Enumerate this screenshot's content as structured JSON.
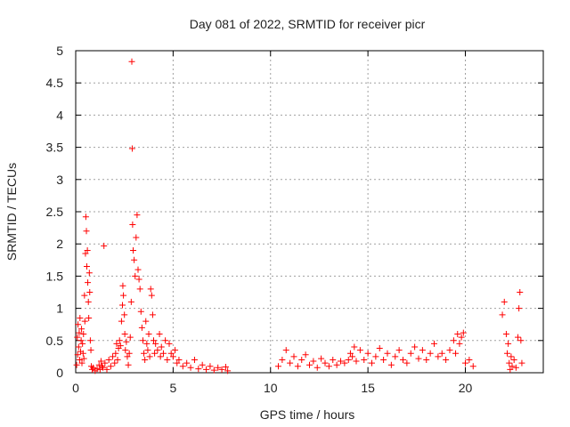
{
  "chart_data": {
    "type": "scatter",
    "title": "Day 081 of 2022, SRMTID for receiver picr",
    "xlabel": "GPS time / hours",
    "ylabel": "SRMTID / TECUs",
    "xlim": [
      0,
      24
    ],
    "ylim": [
      0,
      5
    ],
    "x_ticks": [
      "0",
      "5",
      "10",
      "15",
      "20"
    ],
    "y_ticks": [
      "0",
      "0.5",
      "1",
      "1.5",
      "2",
      "2.5",
      "3",
      "3.5",
      "4",
      "4.5",
      "5"
    ],
    "grid": true,
    "marker": "+",
    "color": "#ff0000",
    "series": [
      {
        "name": "SRMTID",
        "points": [
          [
            0.05,
            0.12
          ],
          [
            0.08,
            0.55
          ],
          [
            0.1,
            0.28
          ],
          [
            0.12,
            0.75
          ],
          [
            0.15,
            0.4
          ],
          [
            0.18,
            0.62
          ],
          [
            0.2,
            0.2
          ],
          [
            0.22,
            0.85
          ],
          [
            0.25,
            0.33
          ],
          [
            0.28,
            0.5
          ],
          [
            0.3,
            0.68
          ],
          [
            0.32,
            0.15
          ],
          [
            0.35,
            0.45
          ],
          [
            0.38,
            0.3
          ],
          [
            0.4,
            0.6
          ],
          [
            0.42,
            0.22
          ],
          [
            0.45,
            1.2
          ],
          [
            0.47,
            0.8
          ],
          [
            0.5,
            1.85
          ],
          [
            0.52,
            2.42
          ],
          [
            0.55,
            2.2
          ],
          [
            0.57,
            1.65
          ],
          [
            0.6,
            1.9
          ],
          [
            0.62,
            1.4
          ],
          [
            0.65,
            1.1
          ],
          [
            0.67,
            0.85
          ],
          [
            0.7,
            1.55
          ],
          [
            0.72,
            1.25
          ],
          [
            0.75,
            0.5
          ],
          [
            0.78,
            0.35
          ],
          [
            0.8,
            0.1
          ],
          [
            0.85,
            0.05
          ],
          [
            0.9,
            0.08
          ],
          [
            1.0,
            0.03
          ],
          [
            1.1,
            0.06
          ],
          [
            1.2,
            0.12
          ],
          [
            1.25,
            0.05
          ],
          [
            1.3,
            0.18
          ],
          [
            1.35,
            0.1
          ],
          [
            1.4,
            0.08
          ],
          [
            1.45,
            1.97
          ],
          [
            1.5,
            0.15
          ],
          [
            1.6,
            0.05
          ],
          [
            1.7,
            0.2
          ],
          [
            1.8,
            0.1
          ],
          [
            1.9,
            0.25
          ],
          [
            2.0,
            0.15
          ],
          [
            2.05,
            0.3
          ],
          [
            2.1,
            0.45
          ],
          [
            2.15,
            0.2
          ],
          [
            2.2,
            0.38
          ],
          [
            2.25,
            0.5
          ],
          [
            2.3,
            0.42
          ],
          [
            2.35,
            0.8
          ],
          [
            2.4,
            1.05
          ],
          [
            2.42,
            1.35
          ],
          [
            2.45,
            1.2
          ],
          [
            2.5,
            0.9
          ],
          [
            2.52,
            0.6
          ],
          [
            2.55,
            0.35
          ],
          [
            2.6,
            0.48
          ],
          [
            2.65,
            0.25
          ],
          [
            2.7,
            0.12
          ],
          [
            2.75,
            0.3
          ],
          [
            2.8,
            0.55
          ],
          [
            2.85,
            1.1
          ],
          [
            2.88,
            4.83
          ],
          [
            2.9,
            3.48
          ],
          [
            2.92,
            2.3
          ],
          [
            2.95,
            1.9
          ],
          [
            3.0,
            1.75
          ],
          [
            3.05,
            1.5
          ],
          [
            3.1,
            2.1
          ],
          [
            3.15,
            2.45
          ],
          [
            3.2,
            1.6
          ],
          [
            3.25,
            1.45
          ],
          [
            3.3,
            1.3
          ],
          [
            3.35,
            0.95
          ],
          [
            3.4,
            0.7
          ],
          [
            3.45,
            0.5
          ],
          [
            3.5,
            0.3
          ],
          [
            3.55,
            0.2
          ],
          [
            3.6,
            0.8
          ],
          [
            3.65,
            0.45
          ],
          [
            3.7,
            0.35
          ],
          [
            3.75,
            0.6
          ],
          [
            3.8,
            0.25
          ],
          [
            3.85,
            1.3
          ],
          [
            3.9,
            1.2
          ],
          [
            3.95,
            0.9
          ],
          [
            4.0,
            0.5
          ],
          [
            4.05,
            0.3
          ],
          [
            4.1,
            0.45
          ],
          [
            4.2,
            0.35
          ],
          [
            4.3,
            0.6
          ],
          [
            4.35,
            0.25
          ],
          [
            4.4,
            0.4
          ],
          [
            4.5,
            0.3
          ],
          [
            4.6,
            0.5
          ],
          [
            4.7,
            0.2
          ],
          [
            4.8,
            0.45
          ],
          [
            4.9,
            0.3
          ],
          [
            5.0,
            0.25
          ],
          [
            5.1,
            0.35
          ],
          [
            5.2,
            0.15
          ],
          [
            5.3,
            0.2
          ],
          [
            5.5,
            0.1
          ],
          [
            5.7,
            0.15
          ],
          [
            5.9,
            0.08
          ],
          [
            6.1,
            0.2
          ],
          [
            6.3,
            0.06
          ],
          [
            6.5,
            0.12
          ],
          [
            6.7,
            0.05
          ],
          [
            6.9,
            0.1
          ],
          [
            7.1,
            0.04
          ],
          [
            7.3,
            0.08
          ],
          [
            7.5,
            0.05
          ],
          [
            7.7,
            0.09
          ],
          [
            7.8,
            0.03
          ],
          [
            10.4,
            0.1
          ],
          [
            10.6,
            0.2
          ],
          [
            10.8,
            0.35
          ],
          [
            11.0,
            0.15
          ],
          [
            11.2,
            0.25
          ],
          [
            11.4,
            0.1
          ],
          [
            11.6,
            0.2
          ],
          [
            11.8,
            0.28
          ],
          [
            12.0,
            0.12
          ],
          [
            12.2,
            0.18
          ],
          [
            12.4,
            0.08
          ],
          [
            12.6,
            0.22
          ],
          [
            12.8,
            0.15
          ],
          [
            13.0,
            0.1
          ],
          [
            13.2,
            0.2
          ],
          [
            13.4,
            0.12
          ],
          [
            13.6,
            0.18
          ],
          [
            13.8,
            0.15
          ],
          [
            14.0,
            0.2
          ],
          [
            14.1,
            0.3
          ],
          [
            14.2,
            0.25
          ],
          [
            14.3,
            0.4
          ],
          [
            14.4,
            0.18
          ],
          [
            14.6,
            0.35
          ],
          [
            14.8,
            0.2
          ],
          [
            15.0,
            0.3
          ],
          [
            15.2,
            0.15
          ],
          [
            15.4,
            0.25
          ],
          [
            15.6,
            0.38
          ],
          [
            15.8,
            0.2
          ],
          [
            16.0,
            0.3
          ],
          [
            16.2,
            0.12
          ],
          [
            16.4,
            0.25
          ],
          [
            16.6,
            0.35
          ],
          [
            16.8,
            0.2
          ],
          [
            17.0,
            0.15
          ],
          [
            17.2,
            0.3
          ],
          [
            17.4,
            0.4
          ],
          [
            17.6,
            0.22
          ],
          [
            17.8,
            0.35
          ],
          [
            18.0,
            0.2
          ],
          [
            18.2,
            0.3
          ],
          [
            18.4,
            0.45
          ],
          [
            18.6,
            0.25
          ],
          [
            18.8,
            0.3
          ],
          [
            19.0,
            0.2
          ],
          [
            19.2,
            0.35
          ],
          [
            19.4,
            0.5
          ],
          [
            19.5,
            0.3
          ],
          [
            19.6,
            0.6
          ],
          [
            19.7,
            0.45
          ],
          [
            19.8,
            0.55
          ],
          [
            19.9,
            0.62
          ],
          [
            20.0,
            0.15
          ],
          [
            20.2,
            0.2
          ],
          [
            20.4,
            0.1
          ],
          [
            21.9,
            0.9
          ],
          [
            22.0,
            1.1
          ],
          [
            22.1,
            0.6
          ],
          [
            22.15,
            0.3
          ],
          [
            22.2,
            0.45
          ],
          [
            22.25,
            0.15
          ],
          [
            22.3,
            0.05
          ],
          [
            22.35,
            0.25
          ],
          [
            22.4,
            0.1
          ],
          [
            22.5,
            0.2
          ],
          [
            22.6,
            0.08
          ],
          [
            22.7,
            0.55
          ],
          [
            22.75,
            1.0
          ],
          [
            22.8,
            1.25
          ],
          [
            22.85,
            0.5
          ],
          [
            22.9,
            0.15
          ]
        ]
      }
    ]
  }
}
